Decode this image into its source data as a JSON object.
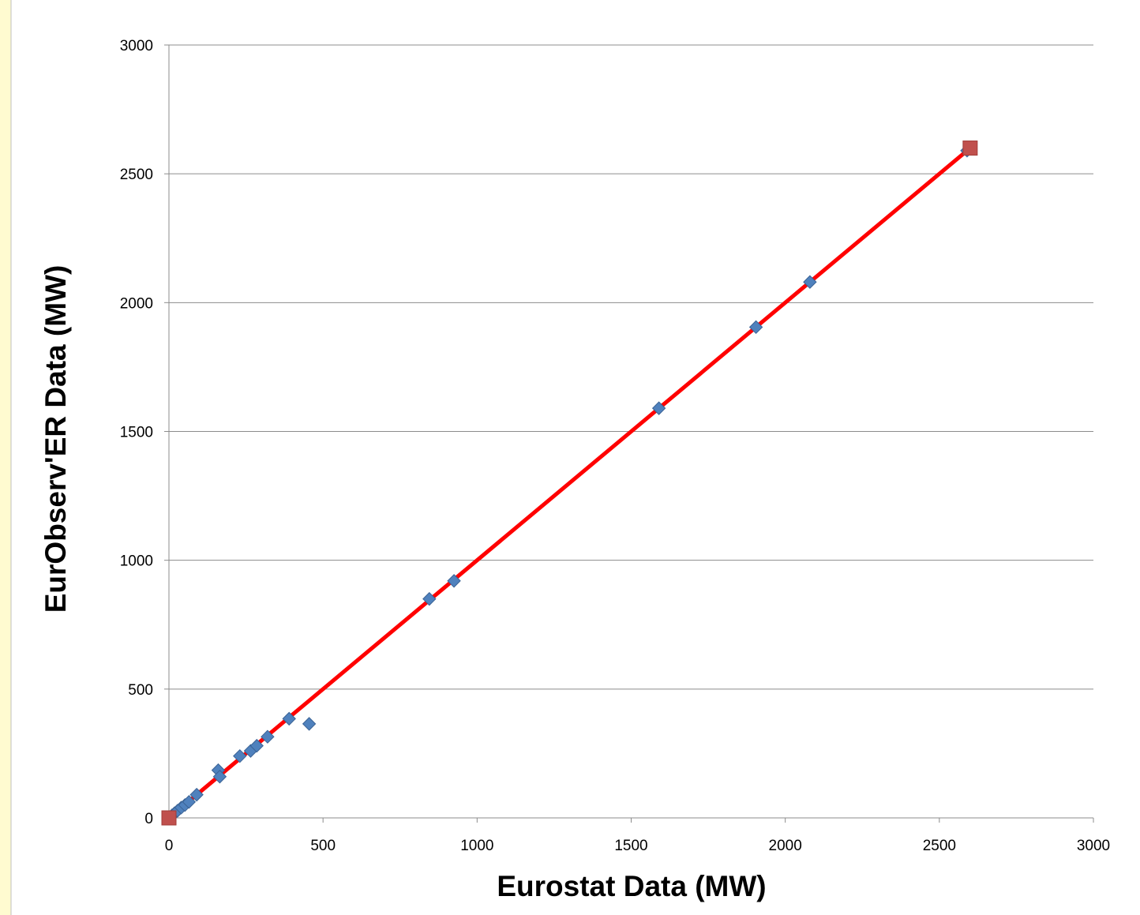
{
  "chart_data": {
    "type": "scatter",
    "title": "",
    "xlabel": "Eurostat Data (MW)",
    "ylabel": "EurObserv'ER Data (MW)",
    "xlim": [
      0,
      3000
    ],
    "ylim": [
      0,
      3000
    ],
    "x_ticks": [
      "0",
      "500",
      "1000",
      "1500",
      "2000",
      "2500",
      "3000"
    ],
    "y_ticks": [
      "0",
      "500",
      "1000",
      "1500",
      "2000",
      "2500",
      "3000"
    ],
    "x_tick_values": [
      0,
      500,
      1000,
      1500,
      2000,
      2500,
      3000
    ],
    "y_tick_values": [
      0,
      500,
      1000,
      1500,
      2000,
      2500,
      3000
    ],
    "grid": "horizontal",
    "series": [
      {
        "marker": "diamond",
        "color": "#4f81bd",
        "points": [
          {
            "x": 2,
            "y": 3
          },
          {
            "x": 10,
            "y": 10
          },
          {
            "x": 18,
            "y": 18
          },
          {
            "x": 28,
            "y": 28
          },
          {
            "x": 40,
            "y": 40
          },
          {
            "x": 52,
            "y": 50
          },
          {
            "x": 65,
            "y": 62
          },
          {
            "x": 90,
            "y": 90
          },
          {
            "x": 160,
            "y": 185
          },
          {
            "x": 165,
            "y": 160
          },
          {
            "x": 230,
            "y": 240
          },
          {
            "x": 265,
            "y": 260
          },
          {
            "x": 285,
            "y": 280
          },
          {
            "x": 320,
            "y": 315
          },
          {
            "x": 390,
            "y": 385
          },
          {
            "x": 455,
            "y": 365
          },
          {
            "x": 845,
            "y": 850
          },
          {
            "x": 925,
            "y": 920
          },
          {
            "x": 1590,
            "y": 1590
          },
          {
            "x": 1905,
            "y": 1905
          },
          {
            "x": 2080,
            "y": 2080
          },
          {
            "x": 2590,
            "y": 2590
          }
        ]
      },
      {
        "marker": "square",
        "color": "#c0504d",
        "line_color": "#ff0000",
        "points": [
          {
            "x": 0,
            "y": 0
          },
          {
            "x": 2600,
            "y": 2600
          }
        ]
      }
    ]
  },
  "colors": {
    "frame_background": "#fffbd0",
    "frame_border": "#e8d98a",
    "plot_background": "#ffffff",
    "gridline": "#8c8c8c"
  }
}
